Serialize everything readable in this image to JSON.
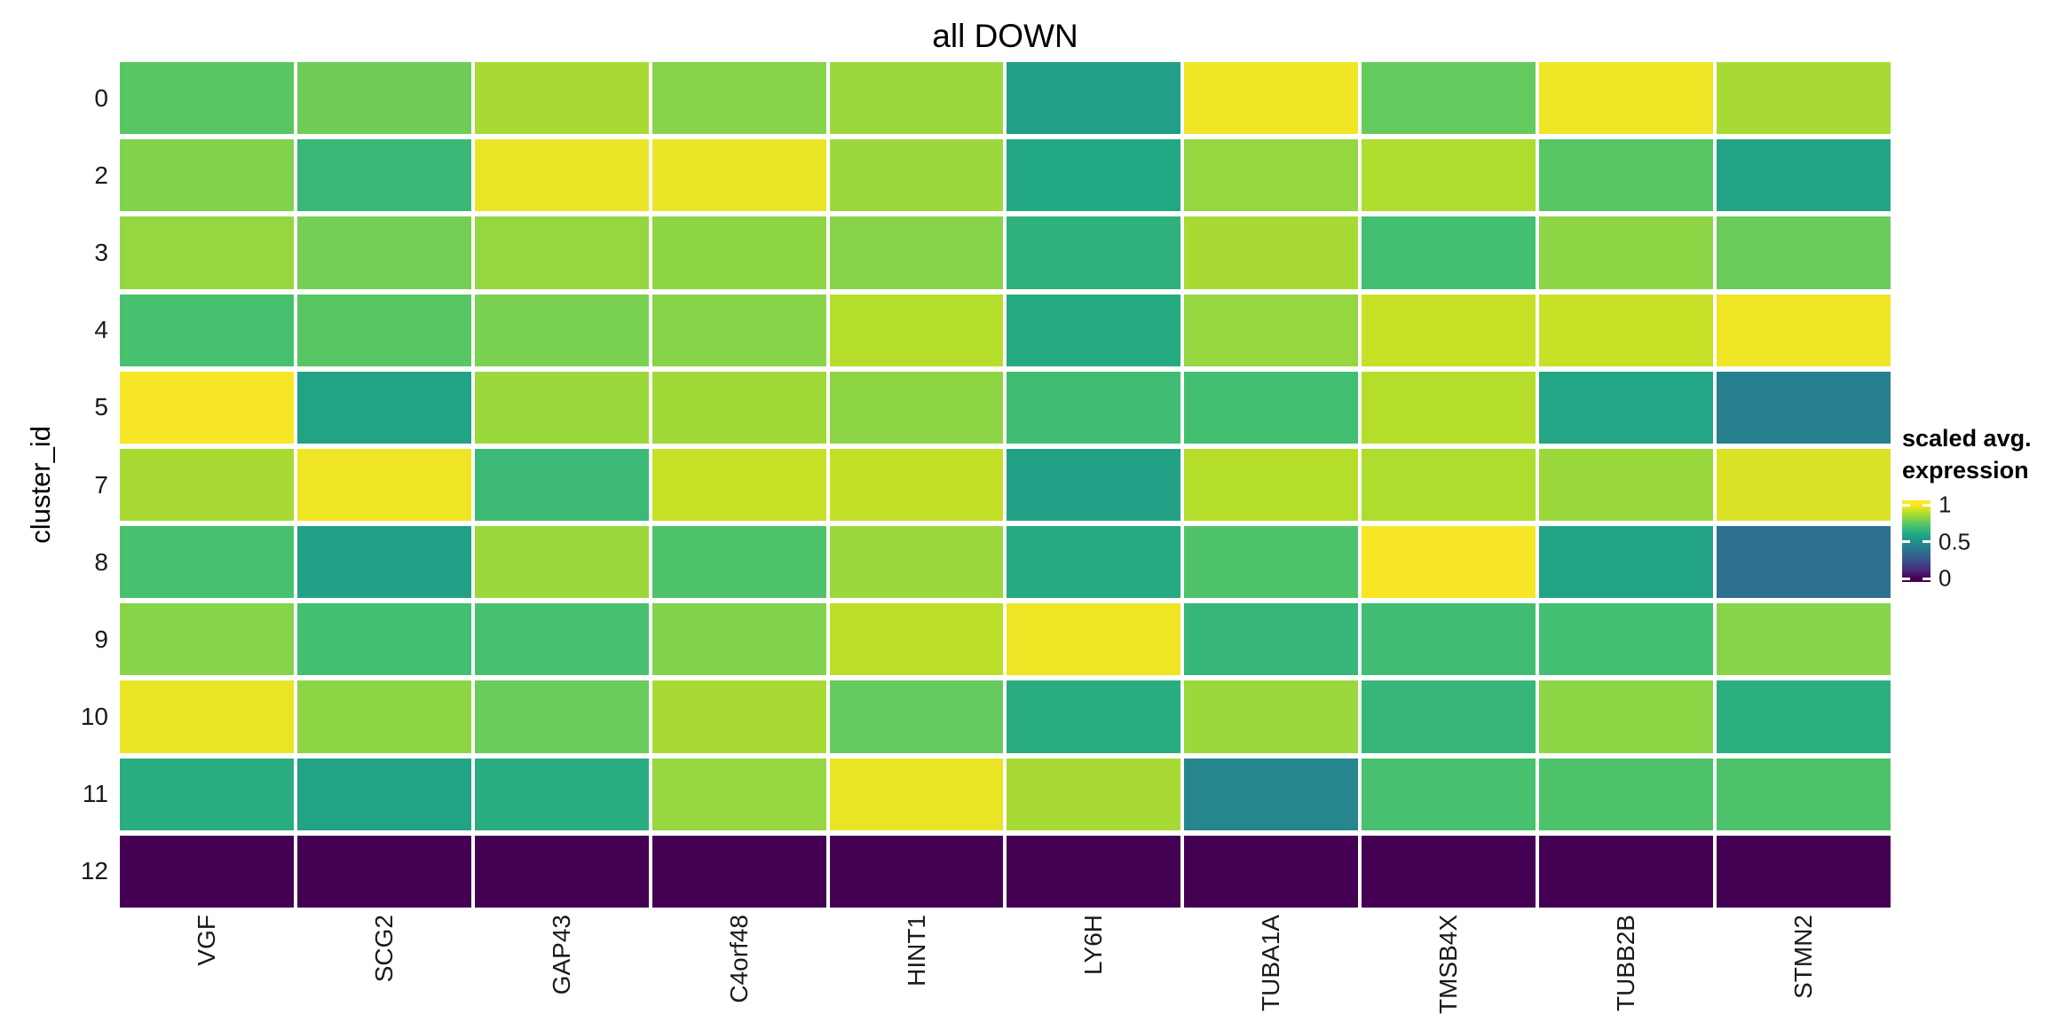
{
  "page": {
    "background": "#ffffff",
    "axis_text_color": "#1a1a1a",
    "title_text_color": "#000000",
    "tile_gap_color": "#ffffff"
  },
  "chart_data": {
    "type": "heatmap",
    "title": "all DOWN",
    "xlabel": "",
    "ylabel": "cluster_id",
    "columns": [
      "VGF",
      "SCG2",
      "GAP43",
      "C4orf48",
      "HINT1",
      "LY6H",
      "TUBA1A",
      "TMSB4X",
      "TUBB2B",
      "STMN2"
    ],
    "rows": [
      "0",
      "2",
      "3",
      "4",
      "5",
      "7",
      "8",
      "9",
      "10",
      "11",
      "12"
    ],
    "values": [
      [
        0.74,
        0.78,
        0.87,
        0.82,
        0.85,
        0.56,
        0.98,
        0.76,
        0.98,
        0.87
      ],
      [
        0.81,
        0.67,
        0.97,
        0.97,
        0.85,
        0.6,
        0.84,
        0.88,
        0.74,
        0.58
      ],
      [
        0.84,
        0.79,
        0.84,
        0.83,
        0.82,
        0.64,
        0.87,
        0.7,
        0.83,
        0.77
      ],
      [
        0.71,
        0.74,
        0.8,
        0.82,
        0.89,
        0.61,
        0.84,
        0.92,
        0.92,
        0.98
      ],
      [
        0.99,
        0.58,
        0.85,
        0.86,
        0.83,
        0.69,
        0.7,
        0.89,
        0.59,
        0.43
      ],
      [
        0.87,
        0.98,
        0.68,
        0.92,
        0.91,
        0.57,
        0.89,
        0.88,
        0.85,
        0.95
      ],
      [
        0.71,
        0.57,
        0.85,
        0.72,
        0.85,
        0.61,
        0.72,
        0.99,
        0.58,
        0.37
      ],
      [
        0.82,
        0.7,
        0.71,
        0.81,
        0.9,
        0.98,
        0.66,
        0.69,
        0.7,
        0.82
      ],
      [
        0.97,
        0.83,
        0.77,
        0.87,
        0.76,
        0.62,
        0.85,
        0.66,
        0.83,
        0.63
      ],
      [
        0.62,
        0.58,
        0.62,
        0.84,
        0.97,
        0.87,
        0.46,
        0.71,
        0.72,
        0.72
      ],
      [
        0.0,
        0.0,
        0.0,
        0.0,
        0.0,
        0.0,
        0.0,
        0.0,
        0.0,
        0.0
      ]
    ],
    "value_range": [
      0,
      1
    ],
    "legend": {
      "title_line1": "scaled avg.",
      "title_line2": "expression",
      "position": "right",
      "ticks": [
        {
          "label": "1",
          "value": 1
        },
        {
          "label": "0.5",
          "value": 0.5
        },
        {
          "label": "0",
          "value": 0
        }
      ]
    },
    "colormap": {
      "name": "viridis",
      "stops": [
        "#440154",
        "#482576",
        "#414487",
        "#35608D",
        "#2A788E",
        "#21918C",
        "#22A884",
        "#43BF71",
        "#7AD151",
        "#BBDF27",
        "#FDE725"
      ]
    }
  }
}
